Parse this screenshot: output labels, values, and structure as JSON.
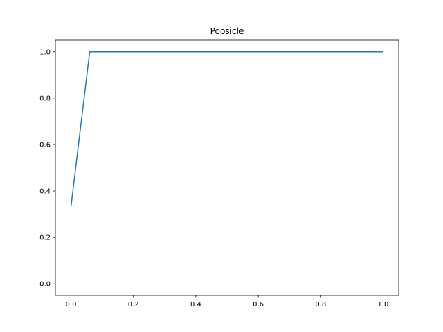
{
  "chart_data": {
    "type": "line",
    "title": "Popsicle",
    "xlabel": "",
    "ylabel": "",
    "xlim": [
      -0.05,
      1.05
    ],
    "ylim": [
      -0.05,
      1.05
    ],
    "grid": false,
    "legend": "none",
    "x_ticks": [
      0.0,
      0.2,
      0.4,
      0.6,
      0.8,
      1.0
    ],
    "x_tick_labels": [
      "0.0",
      "0.2",
      "0.4",
      "0.6",
      "0.8",
      "1.0"
    ],
    "y_ticks": [
      0.0,
      0.2,
      0.4,
      0.6,
      0.8,
      1.0
    ],
    "y_tick_labels": [
      "0.0",
      "0.2",
      "0.4",
      "0.6",
      "0.8",
      "1.0"
    ],
    "series": [
      {
        "color": "#1f77b4",
        "x": [
          0.0,
          0.06,
          0.065,
          1.0
        ],
        "y": [
          0.333,
          1.0,
          1.0,
          1.0
        ]
      },
      {
        "color": "#aec7e8",
        "x": [
          0.0,
          0.0
        ],
        "y": [
          0.0,
          0.996
        ]
      }
    ]
  }
}
